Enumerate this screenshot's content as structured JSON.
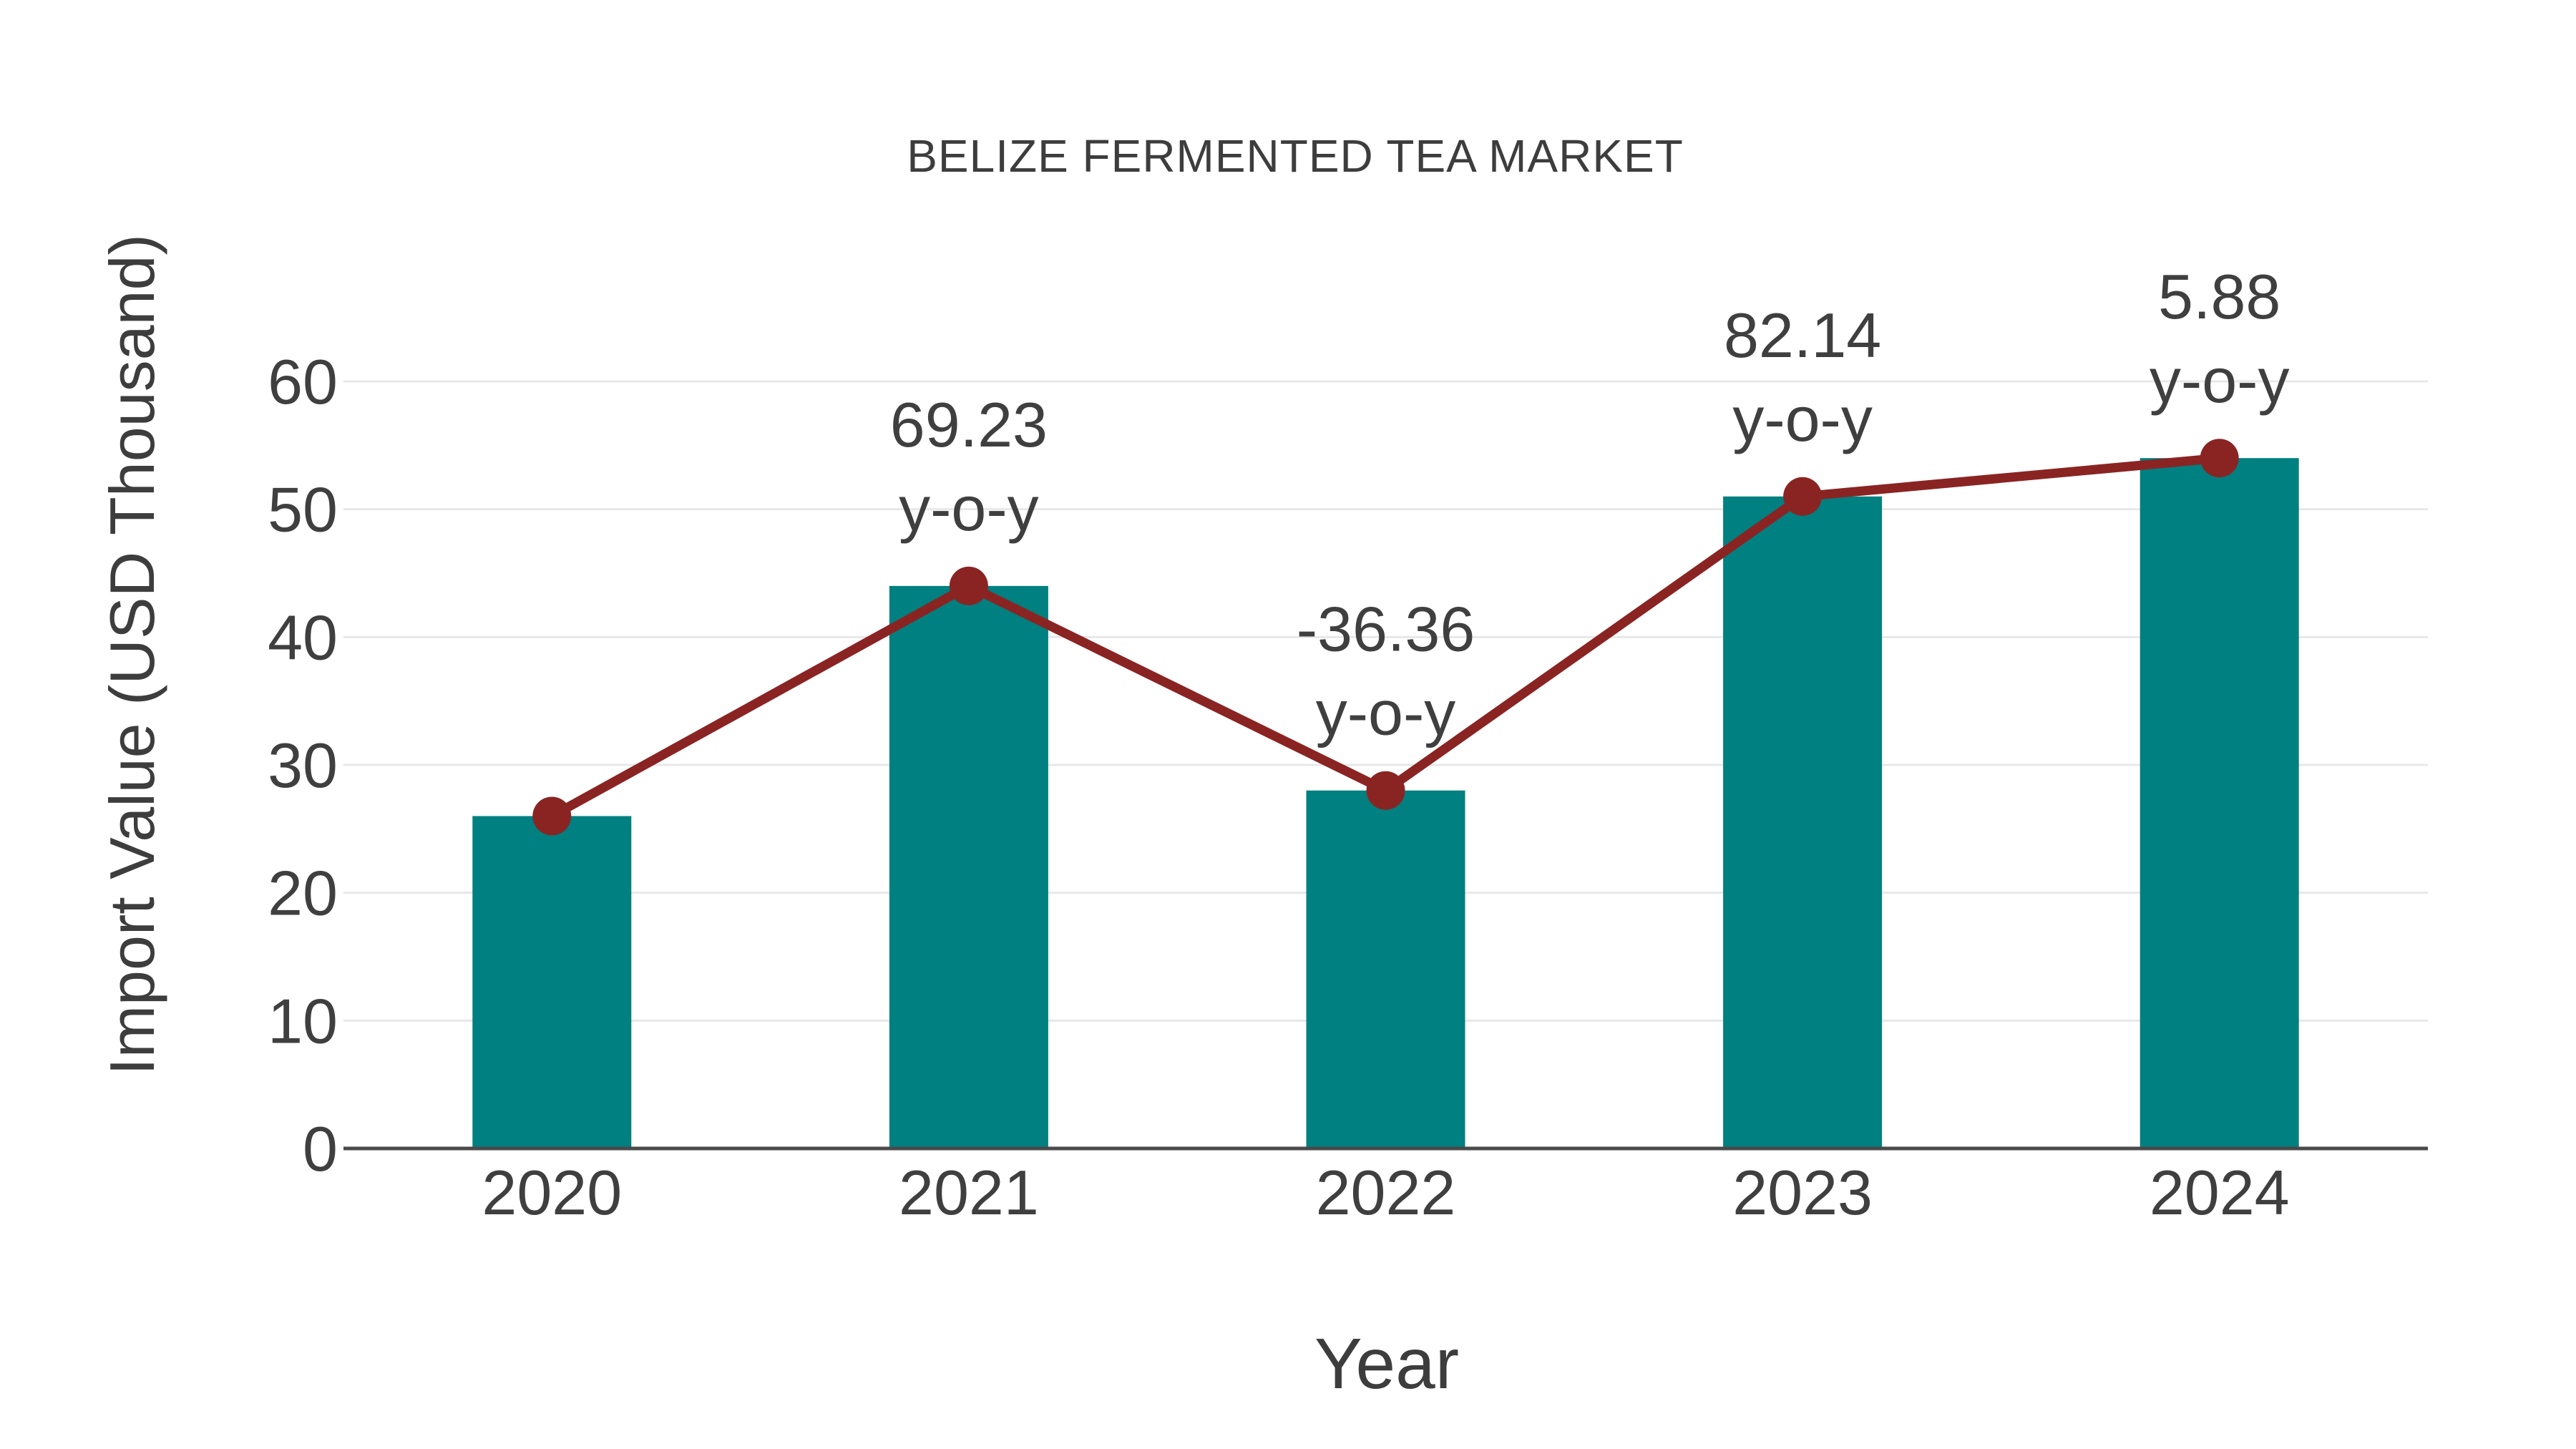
{
  "chart_data": {
    "type": "bar",
    "title": "BELIZE FERMENTED TEA MARKET",
    "xlabel": "Year",
    "ylabel": "Import Value (USD Thousand)",
    "categories": [
      "2020",
      "2021",
      "2022",
      "2023",
      "2024"
    ],
    "series": [
      {
        "name": "Import Value",
        "type": "bar",
        "values": [
          26,
          44,
          28,
          51,
          54
        ],
        "color": "#008080"
      },
      {
        "name": "y-o-y trend",
        "type": "line",
        "values": [
          26,
          44,
          28,
          51,
          54
        ],
        "color": "#8A2423",
        "marker": "circle"
      }
    ],
    "annotations": [
      {
        "x": "2021",
        "lines": [
          "69.23",
          "y-o-y"
        ]
      },
      {
        "x": "2022",
        "lines": [
          "-36.36",
          "y-o-y"
        ]
      },
      {
        "x": "2023",
        "lines": [
          "82.14",
          "y-o-y"
        ]
      },
      {
        "x": "2024",
        "lines": [
          "5.88",
          "y-o-y"
        ]
      }
    ],
    "yticks": [
      0,
      10,
      20,
      30,
      40,
      50,
      60
    ],
    "ylim": [
      0,
      60
    ],
    "grid": true,
    "legend_position": "none",
    "background": "#ffffff"
  },
  "colors": {
    "bar": "#008080",
    "line": "#8A2423",
    "grid": "#e8e8e8",
    "axis": "#4a4a4a",
    "text": "#3f3f3f"
  }
}
